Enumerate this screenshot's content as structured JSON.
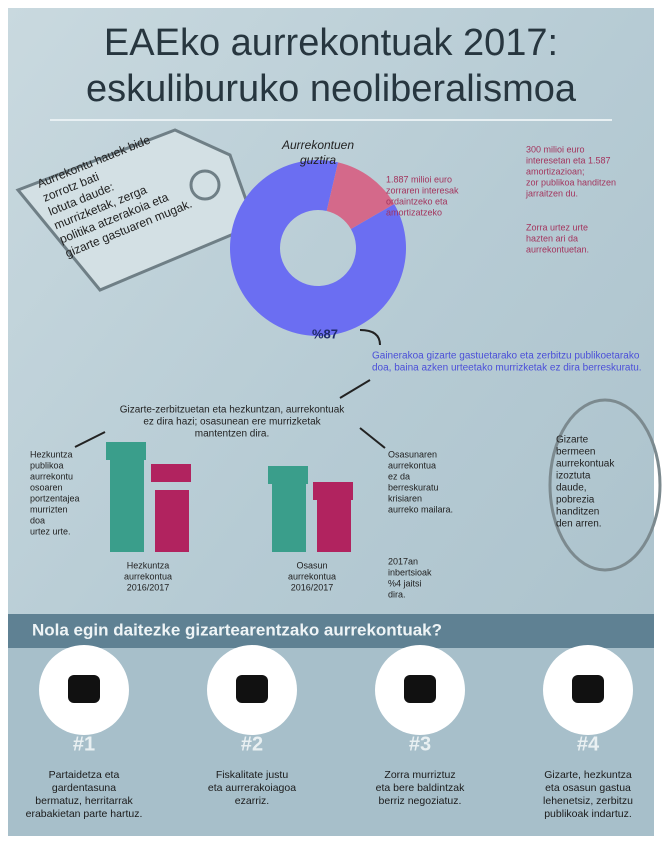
{
  "header": {
    "title": [
      "EAEko aurrekontuak 2017:",
      "eskuliburuko neoliberalismoa"
    ]
  },
  "tag": {
    "lines": [
      "Aurrekontu hauek bide",
      "zorrotz bati",
      "lotuta daude:",
      "murrizketak, zerga",
      "politika atzerakoia eta",
      "gizarte gastuaren mugak."
    ]
  },
  "donut": {
    "label": [
      "Aurrekontuen",
      "guztira"
    ],
    "segments": [
      {
        "value": 87,
        "label": "%87"
      },
      {
        "value": 13
      }
    ],
    "pink_note": [
      "1.887 milioi euro",
      "zorraren interesak",
      "ordaintzeko eta",
      "amortizatzeko"
    ],
    "pink_side": [
      "300 milioi euro",
      "interesetan eta 1.587",
      "amortizazioan;",
      "zor publikoa handitzen",
      "jarraitzen du."
    ],
    "pink_side2": [
      "Zorra urtez urte",
      "hazten ari da",
      "aurrekontuetan."
    ],
    "blue_note": [
      "Gainerakoa gizarte gastuetarako eta zerbitzu publikoetarako",
      "doa, baina azken urteetako murrizketak ez dira berreskuratu."
    ]
  },
  "middle": {
    "intro": [
      "Gizarte-zerbitzuetan eta hezkuntzan, aurrekontuak",
      "ez dira hazi; osasunean ere murrizketak",
      "mantentzen dira."
    ],
    "left_note": [
      "Hezkuntza",
      "publikoa",
      "aurrekontu",
      "osoaren",
      "portzentajea",
      "murrizten",
      "doa",
      "urtez urte."
    ],
    "right_note": [
      "Osasunaren",
      "aurrekontua",
      "ez da",
      "berreskuratu",
      "krisiaren",
      "aurreko mailara."
    ],
    "bar_caption_left": [
      "Hezkuntza",
      "aurrekontua",
      "2016/2017"
    ],
    "bar_caption_right": [
      "Osasun",
      "aurrekontua",
      "2016/2017"
    ],
    "right_bottom": [
      "2017an",
      "inbertsioak",
      "%4 jaitsi",
      "dira."
    ],
    "circle_note": [
      "Gizarte",
      "bermeen",
      "aurrekontuak",
      "izoztuta",
      "daude,",
      "pobrezia",
      "handitzen",
      "den arren."
    ]
  },
  "section": {
    "heading": "Nola egin daitezke gizartearentzako aurrekontuak?"
  },
  "proposals": [
    {
      "number": "#1",
      "lines": [
        "Partaidetza eta",
        "gardentasuna",
        "bermatuz, herritarrak",
        "erabakietan parte hartuz."
      ]
    },
    {
      "number": "#2",
      "lines": [
        "Fiskalitate justu",
        "eta aurrerakoiagoa",
        "ezarriz."
      ]
    },
    {
      "number": "#3",
      "lines": [
        "Zorra murriztuz",
        "eta bere baldintzak",
        "berriz negoziatuz."
      ]
    },
    {
      "number": "#4",
      "lines": [
        "Gizarte, hezkuntza",
        "eta osasun gastua",
        "lehenetsiz, zerbitzu",
        "publikoak indartuz."
      ]
    }
  ]
}
